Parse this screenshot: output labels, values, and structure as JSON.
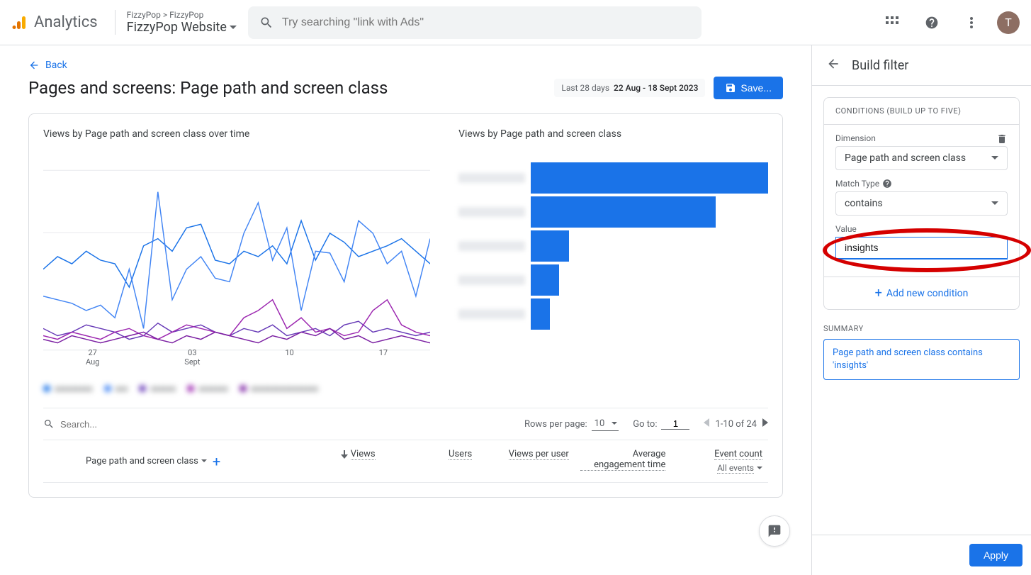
{
  "header": {
    "logo_text": "Analytics",
    "breadcrumb": "FizzyPop > FizzyPop",
    "property_name": "FizzyPop Website",
    "search_placeholder": "Try searching \"link with Ads\"",
    "avatar_letter": "T",
    "avatar_bg": "#8d6e63"
  },
  "back_link": "Back",
  "page_title": "Pages and screens: Page path and screen class",
  "date_range": {
    "label": "Last 28 days",
    "value": "22 Aug - 18 Sept 2023"
  },
  "save_button": "Save...",
  "charts": {
    "line_title": "Views by Page path and screen class over time",
    "bar_title": "Views by Page path and screen class",
    "line_series": [
      {
        "color": "#1a73e8",
        "points": [
          45,
          52,
          48,
          55,
          50,
          48,
          35,
          58,
          62,
          55,
          68,
          70,
          50,
          48,
          55,
          52,
          58,
          48,
          72,
          50,
          65,
          60,
          52,
          55,
          58,
          62,
          55,
          48
        ]
      },
      {
        "color": "#4285f4",
        "points": [
          30,
          28,
          26,
          22,
          25,
          18,
          45,
          12,
          88,
          28,
          45,
          52,
          40,
          38,
          65,
          82,
          50,
          68,
          22,
          55,
          54,
          38,
          72,
          65,
          48,
          55,
          30,
          62
        ]
      },
      {
        "color": "#673ab7",
        "points": [
          12,
          8,
          10,
          14,
          12,
          10,
          6,
          8,
          15,
          10,
          12,
          14,
          10,
          8,
          12,
          10,
          14,
          8,
          10,
          12,
          8,
          14,
          16,
          10,
          12,
          10,
          8,
          10
        ]
      },
      {
        "color": "#9c27b0",
        "points": [
          8,
          6,
          10,
          8,
          6,
          10,
          12,
          8,
          6,
          10,
          14,
          12,
          10,
          8,
          18,
          22,
          28,
          12,
          18,
          10,
          12,
          8,
          10,
          22,
          28,
          14,
          10,
          8
        ]
      },
      {
        "color": "#7b1fa2",
        "points": [
          6,
          4,
          8,
          6,
          4,
          6,
          8,
          10,
          6,
          4,
          8,
          6,
          10,
          8,
          6,
          4,
          8,
          6,
          10,
          8,
          12,
          6,
          8,
          4,
          6,
          8,
          6,
          4
        ]
      }
    ],
    "x_ticks": [
      {
        "day": "27",
        "month": "Aug"
      },
      {
        "day": "03",
        "month": "Sept"
      },
      {
        "day": "10",
        "month": ""
      },
      {
        "day": "17",
        "month": ""
      }
    ],
    "legend_items": [
      {
        "color": "#1a73e8",
        "label": "xxxxxxxxx"
      },
      {
        "color": "#4285f4",
        "label": "xxx"
      },
      {
        "color": "#673ab7",
        "label": "xxxxxx"
      },
      {
        "color": "#9c27b0",
        "label": "xxxxxxx"
      },
      {
        "color": "#7b1fa2",
        "label": "xxxxxxxxxxxxxxxx"
      }
    ],
    "bars": [
      {
        "width_pct": 100
      },
      {
        "width_pct": 78
      },
      {
        "width_pct": 16
      },
      {
        "width_pct": 12
      },
      {
        "width_pct": 8
      }
    ],
    "bar_color": "#1a73e8"
  },
  "table_controls": {
    "search_placeholder": "Search...",
    "rows_label": "Rows per page:",
    "rows_value": "10",
    "goto_label": "Go to:",
    "goto_value": "1",
    "pager_text": "1-10 of 24"
  },
  "table_columns": {
    "dimension": "Page path and screen class",
    "views": "Views",
    "users": "Users",
    "views_per_user": "Views per user",
    "avg_engagement": "Average engagement time",
    "event_count": "Event count",
    "event_count_sub": "All events"
  },
  "filter_panel": {
    "title": "Build filter",
    "conditions_title": "CONDITIONS (BUILD UP TO FIVE)",
    "dimension_label": "Dimension",
    "dimension_value": "Page path and screen class",
    "match_label": "Match Type",
    "match_value": "contains",
    "value_label": "Value",
    "value_input": "insights",
    "add_condition": "Add new condition",
    "summary_label": "SUMMARY",
    "summary_text": "Page path and screen class contains 'insights'",
    "apply_button": "Apply"
  },
  "colors": {
    "primary": "#1a73e8",
    "text": "#3c4043",
    "text_secondary": "#5f6368",
    "border": "#dadce0",
    "highlight": "#d50000"
  }
}
